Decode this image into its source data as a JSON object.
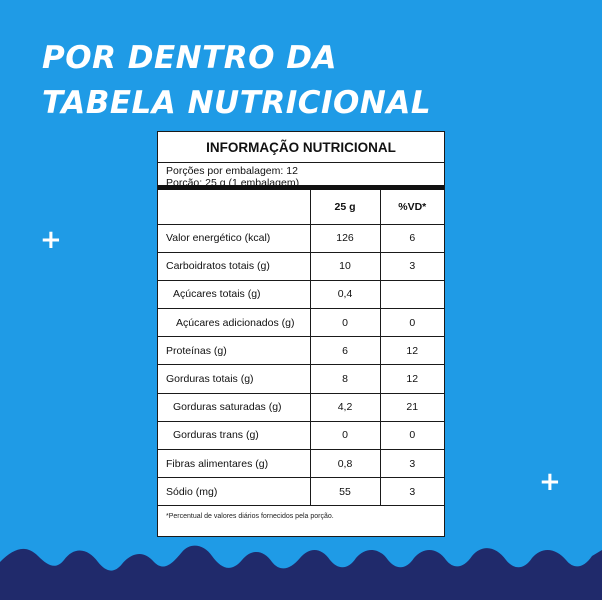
{
  "headline": {
    "line1": "POR DENTRO DA",
    "line2": "TABELA NUTRICIONAL"
  },
  "decor": {
    "plus_symbol": "+",
    "plus_icon": "plus-icon",
    "wave_icon": "wave-pattern"
  },
  "colors": {
    "background": "#1f9be6",
    "wave": "#202a6b",
    "label": "#ffffff"
  },
  "nutrition": {
    "title": "INFORMAÇÃO NUTRICIONAL",
    "servings_per_package": "Porções por embalagem: 12",
    "serving_size": "Porção: 25 g (1 embalagem)",
    "col_qty": "25 g",
    "col_vd": "%VD*",
    "rows": [
      {
        "name": "Valor energético (kcal)",
        "qty": "126",
        "vd": "6"
      },
      {
        "name": "Carboidratos totais (g)",
        "qty": "10",
        "vd": "3"
      },
      {
        "name": "Açúcares totais (g)",
        "qty": "0,4",
        "vd": ""
      },
      {
        "name": "Açúcares adicionados (g)",
        "qty": "0",
        "vd": "0"
      },
      {
        "name": "Proteínas (g)",
        "qty": "6",
        "vd": "12"
      },
      {
        "name": "Gorduras totais (g)",
        "qty": "8",
        "vd": "12"
      },
      {
        "name": "Gorduras saturadas (g)",
        "qty": "4,2",
        "vd": "21"
      },
      {
        "name": "Gorduras trans (g)",
        "qty": "0",
        "vd": "0"
      },
      {
        "name": "Fibras alimentares (g)",
        "qty": "0,8",
        "vd": "3"
      },
      {
        "name": "Sódio (mg)",
        "qty": "55",
        "vd": "3"
      }
    ],
    "footnote": "*Percentual de valores diários fornecidos pela porção."
  }
}
